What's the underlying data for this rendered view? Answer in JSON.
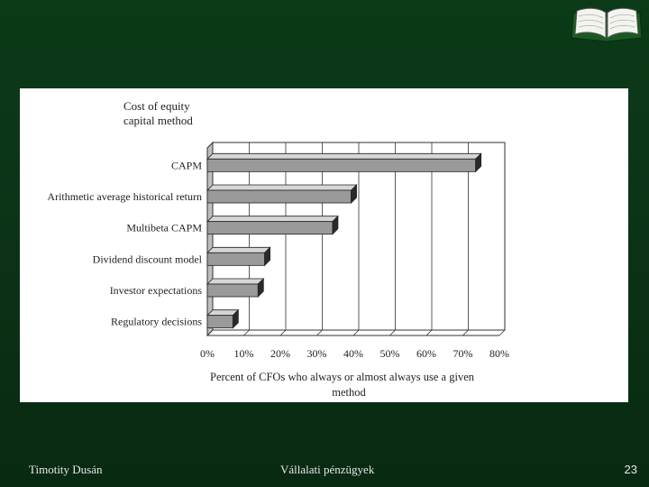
{
  "footer": {
    "author": "Timotity Dusán",
    "course": "Vállalati pénzügyek",
    "page": "23"
  },
  "chart_data": {
    "type": "bar",
    "orientation": "horizontal",
    "title_lines": [
      "Cost of equity",
      "capital method"
    ],
    "categories": [
      "CAPM",
      "Arithmetic average historical return",
      "Multibeta CAPM",
      "Dividend discount model",
      "Investor expectations",
      "Regulatory decisions"
    ],
    "values": [
      73.5,
      39.4,
      34.3,
      15.7,
      13.9,
      7.0
    ],
    "xlim": [
      0,
      80
    ],
    "x_ticks": [
      "0%",
      "10%",
      "20%",
      "30%",
      "40%",
      "50%",
      "60%",
      "70%",
      "80%"
    ],
    "xlabel_lines": [
      "Percent of CFOs who always or almost always use a given",
      "method"
    ],
    "grid": true,
    "bar_color": "#9a9a9a"
  }
}
